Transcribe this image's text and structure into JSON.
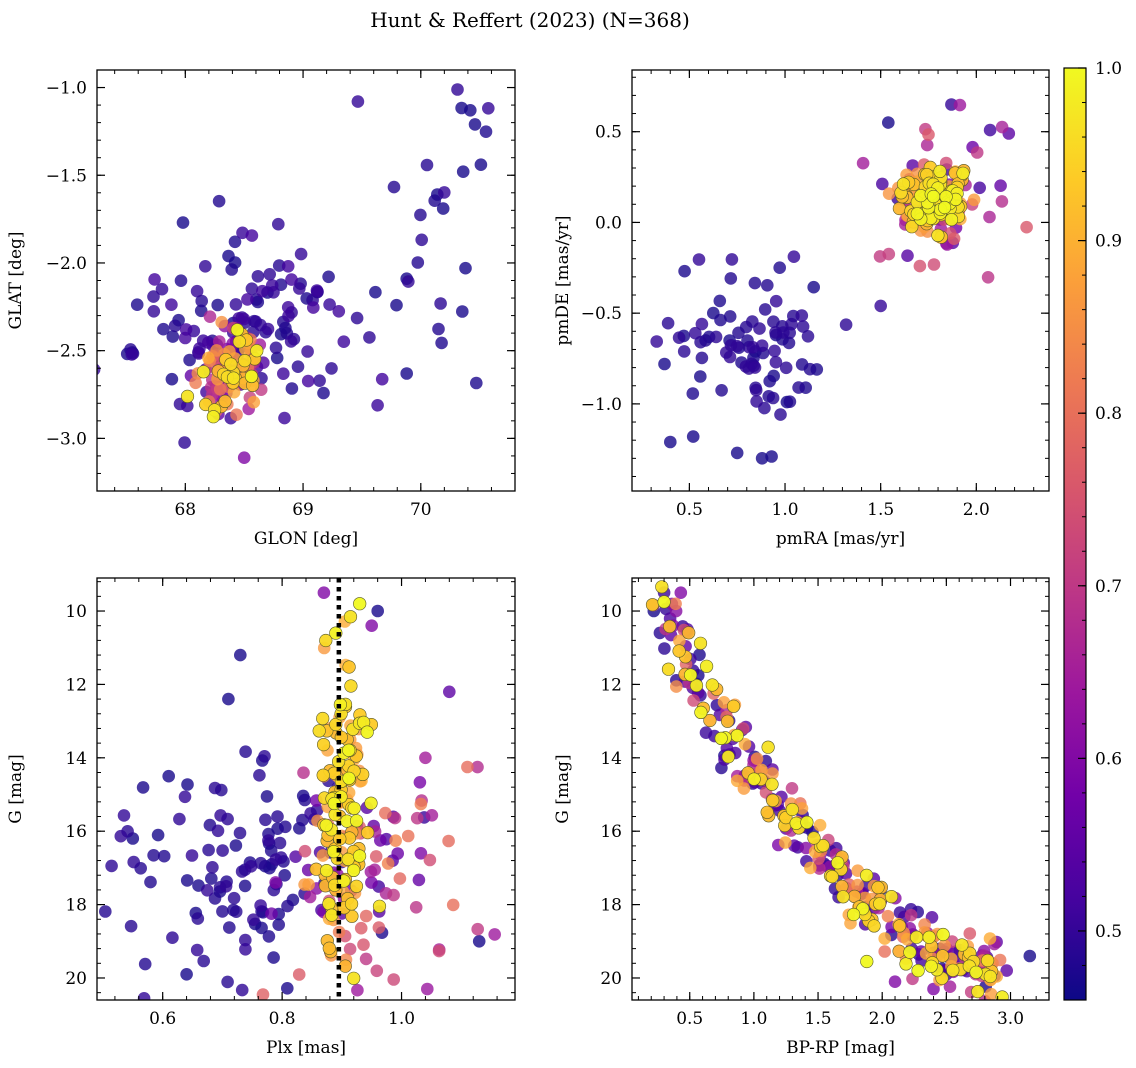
{
  "title": "Hunt & Reffert (2023) (N=368)",
  "chart_data": [
    {
      "type": "scatter",
      "xlabel": "GLON [deg]",
      "ylabel": "GLAT [deg]",
      "xlim": [
        67.25,
        70.8
      ],
      "ylim": [
        -3.3,
        -0.9
      ],
      "xticks": [
        68,
        69,
        70
      ],
      "yticks": [
        -3.0,
        -2.5,
        -2.0,
        -1.5,
        -1.0
      ],
      "inverted_y": false,
      "tick_decimals": [
        0,
        1
      ],
      "clusters": [
        {
          "role": "field",
          "cx": 68.45,
          "cy": -2.35,
          "sx": 0.55,
          "sy": 0.25,
          "n": 120,
          "pmin": 0.47,
          "pmax": 0.52
        },
        {
          "role": "field",
          "cx": 70.1,
          "cy": -1.8,
          "sx": 0.3,
          "sy": 0.45,
          "n": 18,
          "pmin": 0.47,
          "pmax": 0.5
        },
        {
          "role": "members",
          "cx": 68.4,
          "cy": -2.62,
          "sx": 0.14,
          "sy": 0.13,
          "n": 120,
          "pmin": 0.5,
          "pmax": 1.0
        }
      ],
      "points": [
        {
          "x": 70.42,
          "y": -1.13,
          "p": 0.47
        },
        {
          "x": 70.46,
          "y": -1.21,
          "p": 0.47
        },
        {
          "x": 70.51,
          "y": -1.44,
          "p": 0.47
        },
        {
          "x": 70.36,
          "y": -1.48,
          "p": 0.47
        },
        {
          "x": 70.14,
          "y": -1.61,
          "p": 0.47
        },
        {
          "x": 70.19,
          "y": -1.69,
          "p": 0.47
        },
        {
          "x": 70.38,
          "y": -2.03,
          "p": 0.47
        },
        {
          "x": 69.88,
          "y": -2.09,
          "p": 0.47
        },
        {
          "x": 69.88,
          "y": -2.63,
          "p": 0.47
        },
        {
          "x": 67.98,
          "y": -1.77,
          "p": 0.47
        },
        {
          "x": 67.55,
          "y": -2.51,
          "p": 0.47
        },
        {
          "x": 68.5,
          "y": -3.11,
          "p": 0.6
        }
      ]
    },
    {
      "type": "scatter",
      "xlabel": "pmRA [mas/yr]",
      "ylabel": "pmDE [mas/yr]",
      "xlim": [
        0.2,
        2.38
      ],
      "ylim": [
        -1.48,
        0.84
      ],
      "xticks": [
        0.5,
        1.0,
        1.5,
        2.0
      ],
      "yticks": [
        -1.0,
        -0.5,
        0.0,
        0.5
      ],
      "inverted_y": false,
      "tick_decimals": [
        1,
        1
      ],
      "clusters": [
        {
          "role": "field",
          "cx": 0.85,
          "cy": -0.65,
          "sx": 0.2,
          "sy": 0.22,
          "n": 85,
          "pmin": 0.47,
          "pmax": 0.5
        },
        {
          "role": "field",
          "cx": 1.8,
          "cy": 0.15,
          "sx": 0.2,
          "sy": 0.2,
          "n": 60,
          "pmin": 0.5,
          "pmax": 0.8
        },
        {
          "role": "members",
          "cx": 1.76,
          "cy": 0.13,
          "sx": 0.08,
          "sy": 0.08,
          "n": 140,
          "pmin": 0.85,
          "pmax": 1.0
        }
      ],
      "points": [
        {
          "x": 0.4,
          "y": -1.21,
          "p": 0.47
        },
        {
          "x": 0.52,
          "y": -1.18,
          "p": 0.47
        },
        {
          "x": 0.88,
          "y": -1.3,
          "p": 0.47
        },
        {
          "x": 0.93,
          "y": -1.29,
          "p": 0.47
        },
        {
          "x": 0.75,
          "y": -1.27,
          "p": 0.47
        },
        {
          "x": 1.01,
          "y": -0.99,
          "p": 0.47
        },
        {
          "x": 0.37,
          "y": -0.78,
          "p": 0.47
        },
        {
          "x": 1.87,
          "y": 0.65,
          "p": 0.5
        },
        {
          "x": 1.5,
          "y": -0.46,
          "p": 0.5
        },
        {
          "x": 1.54,
          "y": 0.55,
          "p": 0.47
        },
        {
          "x": 2.17,
          "y": 0.49,
          "p": 0.55
        }
      ]
    },
    {
      "type": "scatter",
      "xlabel": "Plx [mas]",
      "ylabel": "G [mag]",
      "xlim": [
        0.49,
        1.19
      ],
      "ylim": [
        20.6,
        9.1
      ],
      "xticks": [
        0.6,
        0.8,
        1.0
      ],
      "yticks": [
        10,
        12,
        14,
        16,
        18,
        20
      ],
      "inverted_y": true,
      "tick_decimals": [
        1,
        0
      ],
      "vline": {
        "x": 0.895,
        "style": "dotted"
      },
      "clusters": [
        {
          "role": "field",
          "cx": 0.72,
          "cy": 17.2,
          "sx": 0.09,
          "sy": 1.6,
          "n": 110,
          "pmin": 0.47,
          "pmax": 0.5
        },
        {
          "role": "field",
          "cx": 0.97,
          "cy": 17.6,
          "sx": 0.08,
          "sy": 1.8,
          "n": 90,
          "pmin": 0.5,
          "pmax": 0.85
        },
        {
          "role": "members",
          "cx": 0.9,
          "cy": 15.5,
          "sx": 0.025,
          "sy": 2.0,
          "n": 140,
          "pmin": 0.85,
          "pmax": 1.0
        }
      ],
      "points": [
        {
          "x": 0.93,
          "y": 9.8,
          "p": 1.0
        },
        {
          "x": 0.87,
          "y": 9.5,
          "p": 0.6
        },
        {
          "x": 0.96,
          "y": 10.0,
          "p": 0.47
        },
        {
          "x": 0.95,
          "y": 10.4,
          "p": 0.6
        },
        {
          "x": 0.73,
          "y": 11.2,
          "p": 0.47
        },
        {
          "x": 0.71,
          "y": 12.4,
          "p": 0.47
        },
        {
          "x": 1.08,
          "y": 12.2,
          "p": 0.55
        },
        {
          "x": 0.55,
          "y": 16.2,
          "p": 0.47
        },
        {
          "x": 0.61,
          "y": 14.5,
          "p": 0.47
        },
        {
          "x": 1.04,
          "y": 14.0,
          "p": 0.65
        },
        {
          "x": 1.13,
          "y": 19.0,
          "p": 0.47
        },
        {
          "x": 0.64,
          "y": 19.9,
          "p": 0.47
        }
      ]
    },
    {
      "type": "scatter",
      "xlabel": "BP-RP [mag]",
      "ylabel": "G [mag]",
      "xlim": [
        0.05,
        3.3
      ],
      "ylim": [
        20.6,
        9.1
      ],
      "xticks": [
        0.5,
        1.0,
        1.5,
        2.0,
        2.5,
        3.0
      ],
      "yticks": [
        10,
        12,
        14,
        16,
        18,
        20
      ],
      "inverted_y": true,
      "tick_decimals": [
        1,
        0
      ],
      "sequence": {
        "x": [
          0.25,
          0.6,
          1.0,
          1.4,
          1.8,
          2.2,
          2.6,
          2.9
        ],
        "y": [
          9.8,
          12.3,
          14.3,
          16.0,
          17.5,
          18.8,
          19.6,
          19.9
        ],
        "spread": 0.12
      },
      "clusters": [
        {
          "role": "field",
          "n": 110,
          "pmin": 0.47,
          "pmax": 0.55
        },
        {
          "role": "field",
          "n": 90,
          "pmin": 0.55,
          "pmax": 0.85
        },
        {
          "role": "members",
          "n": 140,
          "pmin": 0.85,
          "pmax": 1.0
        }
      ],
      "points": [
        {
          "x": 0.22,
          "y": 10.0,
          "p": 0.47
        },
        {
          "x": 0.3,
          "y": 9.75,
          "p": 1.0
        },
        {
          "x": 0.43,
          "y": 9.5,
          "p": 0.6
        },
        {
          "x": 0.37,
          "y": 10.4,
          "p": 0.6
        },
        {
          "x": 3.15,
          "y": 19.4,
          "p": 0.47
        },
        {
          "x": 2.97,
          "y": 19.8,
          "p": 0.55
        },
        {
          "x": 1.88,
          "y": 19.55,
          "p": 1.0
        },
        {
          "x": 2.28,
          "y": 19.8,
          "p": 1.0
        },
        {
          "x": 2.4,
          "y": 20.3,
          "p": 0.6
        },
        {
          "x": 2.1,
          "y": 20.1,
          "p": 0.6
        }
      ]
    }
  ],
  "colorbar": {
    "vmin": 0.46,
    "vmax": 1.0,
    "ticks": [
      0.5,
      0.6,
      0.7,
      0.8,
      0.9,
      1.0
    ],
    "colormap": [
      "#0d0887",
      "#46039f",
      "#7201a8",
      "#9c179e",
      "#bd3786",
      "#d8576b",
      "#ed7953",
      "#fb9f3a",
      "#fdca26",
      "#f0f921"
    ],
    "marker_edge": "#5a5a2a"
  }
}
